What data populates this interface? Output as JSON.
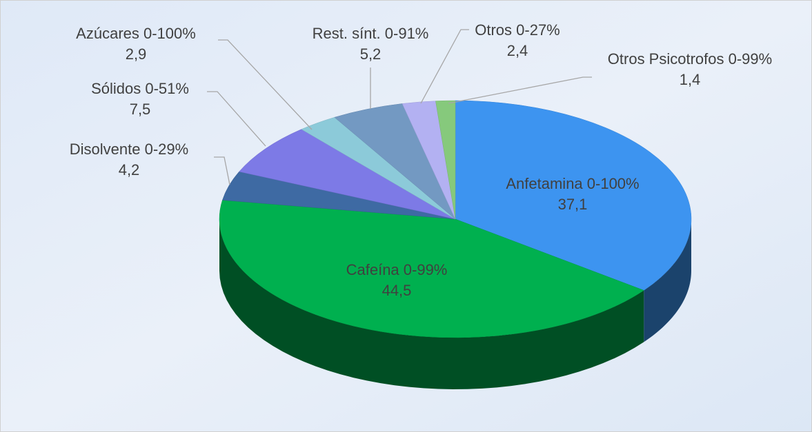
{
  "chart_data": {
    "type": "pie",
    "categories": [
      "Anfetamina 0-100%",
      "Cafeína 0-99%",
      "Disolvente 0-29%",
      "Sólidos 0-51%",
      "Azúcares 0-100%",
      "Rest. sínt. 0-91%",
      "Otros 0-27%",
      "Otros Psicotrofos 0-99%"
    ],
    "values": [
      37.1,
      44.5,
      4.2,
      7.5,
      2.9,
      5.2,
      2.4,
      1.4
    ],
    "value_labels": [
      "37,1",
      "44,5",
      "4,2",
      "7,5",
      "2,9",
      "5,2",
      "2,4",
      "1,4"
    ],
    "colors": [
      "#3d94f0",
      "#00b04f",
      "#3e6aa3",
      "#7d7ae6",
      "#8ccad9",
      "#7399c2",
      "#b3b1f2",
      "#86c97c"
    ]
  }
}
